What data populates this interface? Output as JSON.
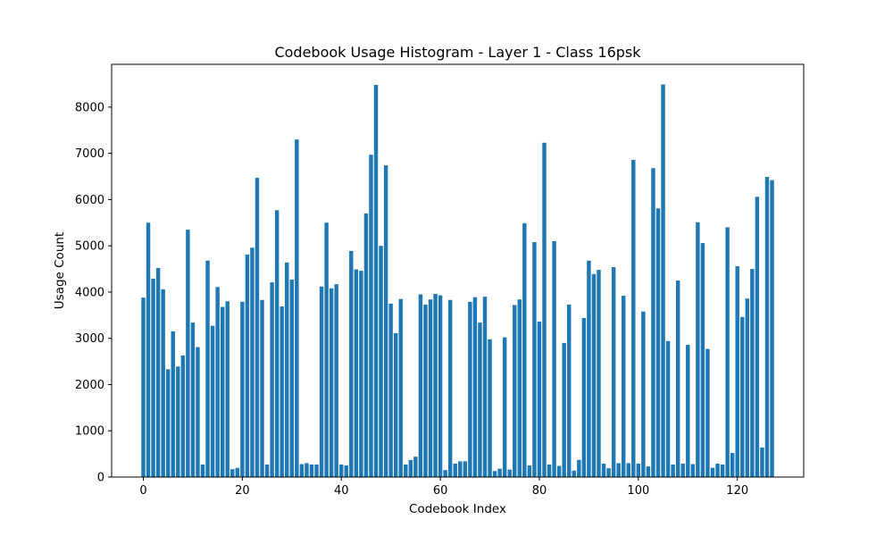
{
  "chart_data": {
    "type": "bar",
    "title": "Codebook Usage Histogram - Layer 1 - Class 16psk",
    "xlabel": "Codebook Index",
    "ylabel": "Usage Count",
    "xlim": [
      -6.4,
      133.4
    ],
    "ylim": [
      0,
      8925
    ],
    "x_ticks": [
      0,
      20,
      40,
      60,
      80,
      100,
      120
    ],
    "y_ticks": [
      0,
      1000,
      2000,
      3000,
      4000,
      5000,
      6000,
      7000,
      8000
    ],
    "grid": false,
    "bar_color": "#1f77b4",
    "x": [
      0,
      1,
      2,
      3,
      4,
      5,
      6,
      7,
      8,
      9,
      10,
      11,
      12,
      13,
      14,
      15,
      16,
      17,
      18,
      19,
      20,
      21,
      22,
      23,
      24,
      25,
      26,
      27,
      28,
      29,
      30,
      31,
      32,
      33,
      34,
      35,
      36,
      37,
      38,
      39,
      40,
      41,
      42,
      43,
      44,
      45,
      46,
      47,
      48,
      49,
      50,
      51,
      52,
      53,
      54,
      55,
      56,
      57,
      58,
      59,
      60,
      61,
      62,
      63,
      64,
      65,
      66,
      67,
      68,
      69,
      70,
      71,
      72,
      73,
      74,
      75,
      76,
      77,
      78,
      79,
      80,
      81,
      82,
      83,
      84,
      85,
      86,
      87,
      88,
      89,
      90,
      91,
      92,
      93,
      94,
      95,
      96,
      97,
      98,
      99,
      100,
      101,
      102,
      103,
      104,
      105,
      106,
      107,
      108,
      109,
      110,
      111,
      112,
      113,
      114,
      115,
      116,
      117,
      118,
      119,
      120,
      121,
      122,
      123,
      124,
      125,
      126,
      127
    ],
    "values": [
      3880,
      5500,
      4290,
      4520,
      4060,
      2330,
      3150,
      2390,
      2630,
      5350,
      3340,
      2810,
      270,
      4680,
      3270,
      4110,
      3680,
      3800,
      170,
      200,
      3790,
      4810,
      4960,
      6470,
      3830,
      270,
      4210,
      5770,
      3690,
      4640,
      4270,
      7300,
      280,
      300,
      270,
      270,
      4120,
      5500,
      4080,
      4170,
      270,
      250,
      4890,
      4490,
      4460,
      5700,
      6970,
      8480,
      5000,
      6740,
      3750,
      3110,
      3850,
      270,
      370,
      440,
      3950,
      3730,
      3840,
      3960,
      3930,
      150,
      3830,
      290,
      340,
      340,
      3790,
      3890,
      3340,
      3900,
      2980,
      130,
      180,
      3020,
      160,
      3720,
      3840,
      5490,
      250,
      5080,
      3360,
      7230,
      270,
      5100,
      240,
      2900,
      3730,
      140,
      370,
      3440,
      4680,
      4390,
      4480,
      290,
      190,
      4540,
      300,
      3920,
      300,
      6860,
      290,
      3580,
      230,
      6680,
      5810,
      8490,
      2940,
      270,
      4250,
      290,
      2860,
      280,
      5510,
      5060,
      2770,
      200,
      290,
      270,
      5400,
      520,
      4560,
      3460,
      3860,
      4500,
      6060,
      640,
      6490,
      6420
    ]
  }
}
